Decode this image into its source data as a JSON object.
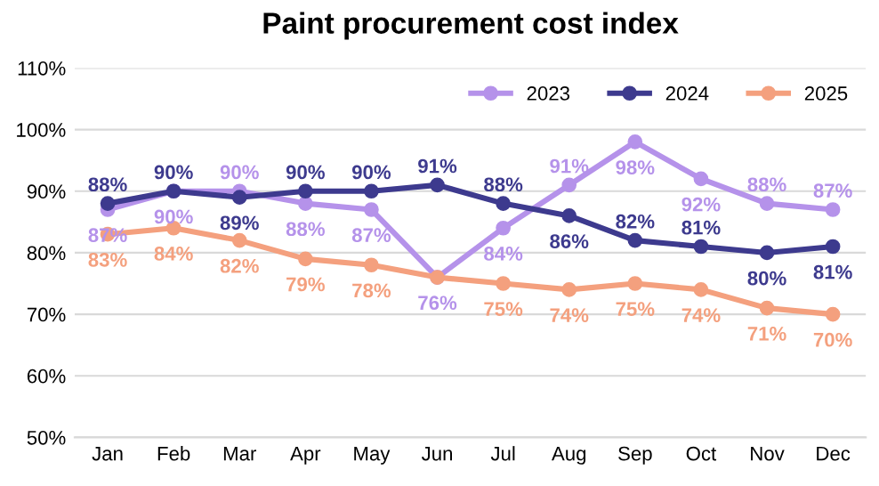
{
  "chart_data": {
    "type": "line",
    "title": "Paint procurement cost index",
    "categories": [
      "Jan",
      "Feb",
      "Mar",
      "Apr",
      "May",
      "Jun",
      "Jul",
      "Aug",
      "Sep",
      "Oct",
      "Nov",
      "Dec"
    ],
    "series": [
      {
        "name": "2023",
        "color": "#b592ea",
        "values": [
          87,
          90,
          90,
          88,
          87,
          76,
          84,
          91,
          98,
          92,
          88,
          87
        ],
        "value_labels": [
          "87%",
          "90%",
          "90%",
          "88%",
          "87%",
          "76%",
          "84%",
          "91%",
          "98%",
          "92%",
          "88%",
          "87%"
        ]
      },
      {
        "name": "2024",
        "color": "#3d3a8e",
        "values": [
          88,
          90,
          89,
          90,
          90,
          91,
          88,
          86,
          82,
          81,
          80,
          81
        ],
        "value_labels": [
          "88%",
          "90%",
          "89%",
          "90%",
          "90%",
          "91%",
          "88%",
          "86%",
          "82%",
          "81%",
          "80%",
          "81%"
        ]
      },
      {
        "name": "2025",
        "color": "#f4a07e",
        "values": [
          83,
          84,
          82,
          79,
          78,
          76,
          75,
          74,
          75,
          74,
          71,
          70
        ],
        "value_labels": [
          "83%",
          "84%",
          "82%",
          "79%",
          "78%",
          null,
          "75%",
          "74%",
          "75%",
          "74%",
          "71%",
          "70%"
        ]
      }
    ],
    "ylim": [
      50,
      110
    ],
    "yticks": [
      {
        "value": 50,
        "label": "50%"
      },
      {
        "value": 60,
        "label": "60%"
      },
      {
        "value": 70,
        "label": "70%"
      },
      {
        "value": 80,
        "label": "80%"
      },
      {
        "value": 90,
        "label": "90%"
      },
      {
        "value": 100,
        "label": "100%"
      },
      {
        "value": 110,
        "label": "110%"
      }
    ],
    "grid": "y",
    "legend": "top right",
    "marker": "circle",
    "line_style": "solid"
  }
}
